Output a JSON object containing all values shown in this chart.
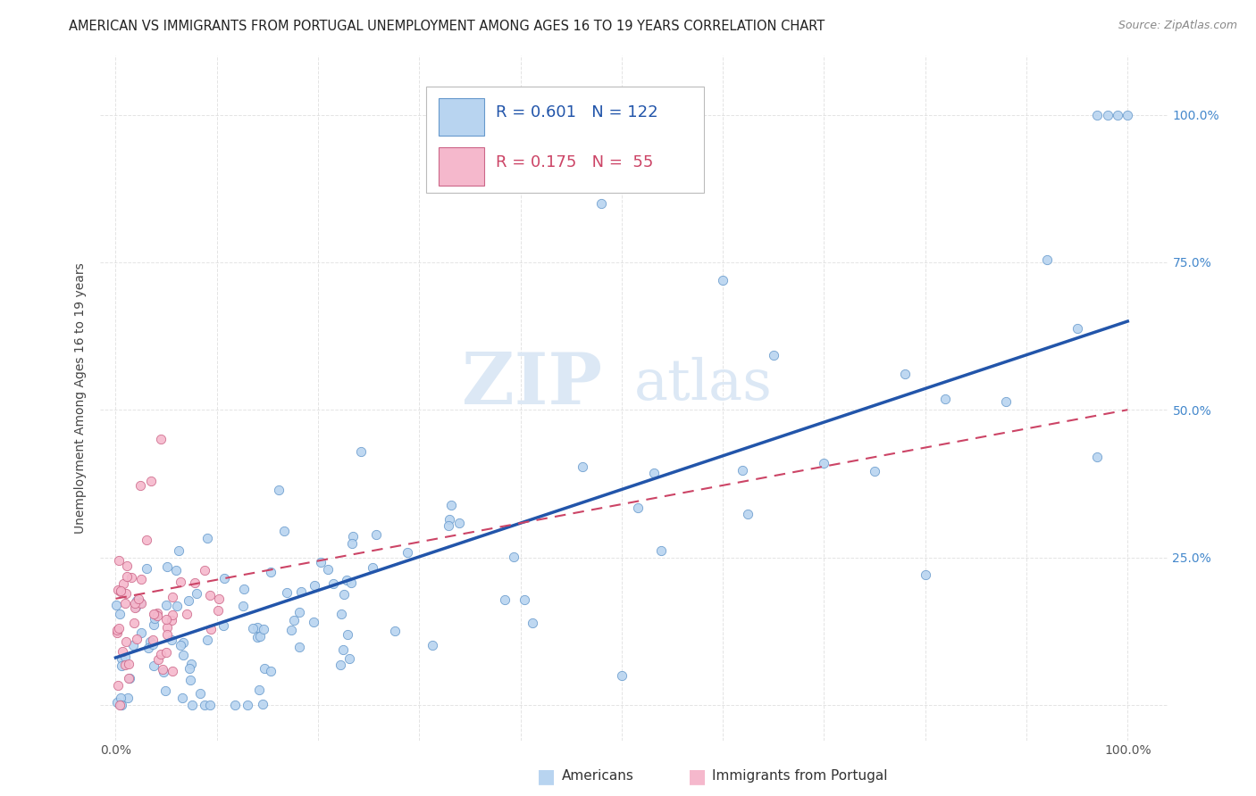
{
  "title": "AMERICAN VS IMMIGRANTS FROM PORTUGAL UNEMPLOYMENT AMONG AGES 16 TO 19 YEARS CORRELATION CHART",
  "source": "Source: ZipAtlas.com",
  "ylabel": "Unemployment Among Ages 16 to 19 years",
  "american_color": "#b8d4f0",
  "american_edge_color": "#6699cc",
  "portugal_color": "#f5b8cc",
  "portugal_edge_color": "#cc6688",
  "american_line_color": "#2255aa",
  "portugal_line_color": "#cc4466",
  "legend_am_color": "#2255aa",
  "legend_pt_color": "#cc4466",
  "background_color": "#ffffff",
  "grid_color": "#dddddd",
  "title_fontsize": 10.5,
  "tick_fontsize": 10,
  "legend_fontsize": 13,
  "ylabel_fontsize": 10,
  "watermark_color": "#dce8f5"
}
